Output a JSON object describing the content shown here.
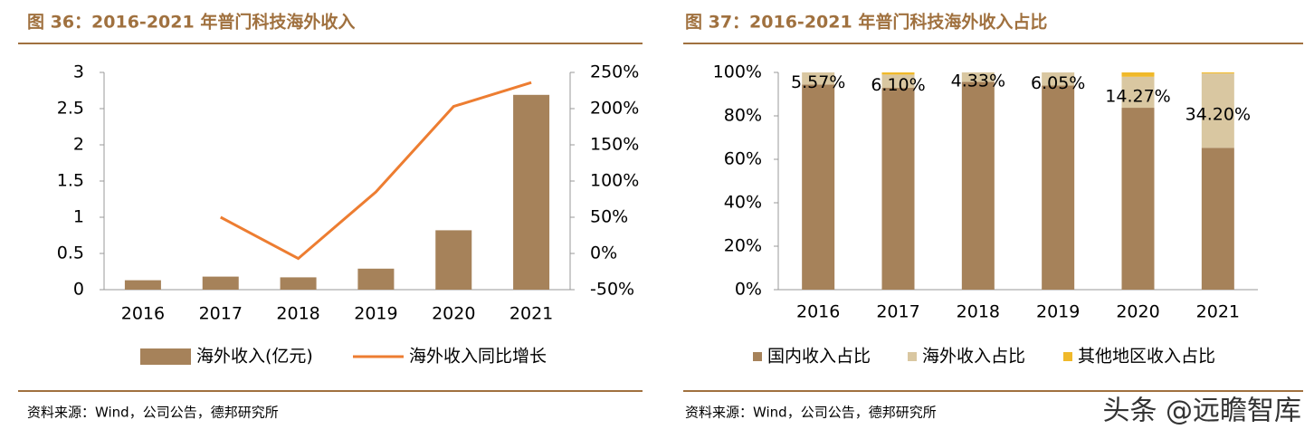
{
  "chart_data": [
    {
      "type": "bar_line",
      "title": "图 36：2016-2021 年普门科技海外收入",
      "source": "资料来源：Wind，公司公告，德邦研究所",
      "categories": [
        "2016",
        "2017",
        "2018",
        "2019",
        "2020",
        "2021"
      ],
      "series": [
        {
          "name": "海外收入(亿元)",
          "type": "bar",
          "color": "#a6825a",
          "values": [
            0.13,
            0.18,
            0.17,
            0.29,
            0.82,
            2.69
          ]
        },
        {
          "name": "海外收入同比增长",
          "type": "line",
          "color": "#ed7d31",
          "axis": "y2",
          "values": [
            null,
            50,
            -7,
            85,
            203,
            236
          ]
        }
      ],
      "ylim": [
        0,
        3
      ],
      "yticks": [
        0,
        0.5,
        1,
        1.5,
        2,
        2.5,
        3
      ],
      "y2lim": [
        -50,
        250
      ],
      "y2ticks": [
        {
          "value": -50,
          "label": "-50%"
        },
        {
          "value": 0,
          "label": "0%"
        },
        {
          "value": 50,
          "label": "50%"
        },
        {
          "value": 100,
          "label": "100%"
        },
        {
          "value": 150,
          "label": "150%"
        },
        {
          "value": 200,
          "label": "200%"
        },
        {
          "value": 250,
          "label": "250%"
        }
      ]
    },
    {
      "type": "stacked_bar",
      "title": "图 37：2016-2021 年普门科技海外收入占比",
      "source": "资料来源：Wind，公司公告，德邦研究所",
      "categories": [
        "2016",
        "2017",
        "2018",
        "2019",
        "2020",
        "2021"
      ],
      "series": [
        {
          "name": "国内收入占比",
          "color": "#a6825a",
          "values": [
            94.43,
            92.9,
            95.67,
            93.95,
            83.73,
            65.3
          ]
        },
        {
          "name": "海外收入占比",
          "color": "#d9c7a1",
          "values": [
            5.57,
            6.1,
            4.33,
            6.05,
            14.27,
            34.2
          ],
          "value_labels": [
            "5.57%",
            "6.10%",
            "4.33%",
            "6.05%",
            "14.27%",
            "34.20%"
          ]
        },
        {
          "name": "其他地区收入占比",
          "color": "#f0b92a",
          "values": [
            0,
            1,
            0,
            0,
            2,
            0.5
          ]
        }
      ],
      "ylim": [
        0,
        100
      ],
      "yticks": [
        {
          "value": 0,
          "label": "0%"
        },
        {
          "value": 20,
          "label": "20%"
        },
        {
          "value": 40,
          "label": "40%"
        },
        {
          "value": 60,
          "label": "60%"
        },
        {
          "value": 80,
          "label": "80%"
        },
        {
          "value": 100,
          "label": "100%"
        }
      ]
    }
  ],
  "watermark": "头条 @远瞻智库"
}
